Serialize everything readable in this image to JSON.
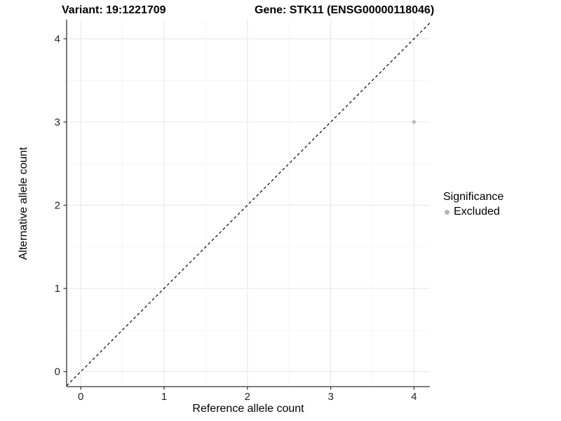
{
  "chart_data": {
    "type": "scatter",
    "titles": {
      "left": "Variant: 19:1221709",
      "right": "Gene: STK11 (ENSG00000118046)"
    },
    "xlabel": "Reference allele count",
    "ylabel": "Alternative allele count",
    "xlim": [
      -0.17,
      4.19
    ],
    "ylim": [
      -0.18,
      4.23
    ],
    "xticks": [
      0,
      1,
      2,
      3,
      4
    ],
    "yticks": [
      0,
      1,
      2,
      3,
      4
    ],
    "minor_grid_step": 0.5,
    "grid": true,
    "legend_position": "right",
    "identity_line": {
      "style": "dashed",
      "color": "#000000",
      "from": -0.17,
      "to": 4.19
    },
    "points": [
      {
        "x": 4,
        "y": 3,
        "significance": "Excluded"
      }
    ],
    "legend": {
      "title": "Significance",
      "entries": [
        {
          "label": "Excluded",
          "color": "#b5b5b5"
        }
      ]
    },
    "colors": {
      "background": "#ffffff",
      "grid_major": "#e8e8e8",
      "grid_minor": "#f4f4f4",
      "axis_line": "#333333",
      "tick_mark": "#333333",
      "tick_label": "#262626",
      "point": "#bcbcbc",
      "title": "#000000"
    }
  }
}
